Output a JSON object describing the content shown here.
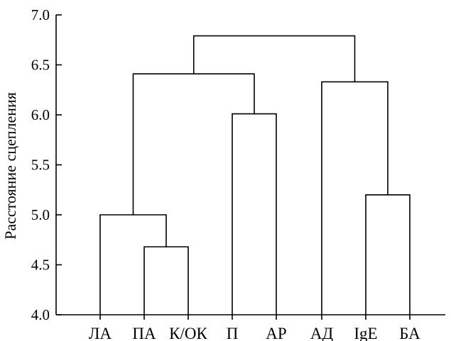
{
  "chart_data": {
    "type": "dendrogram",
    "ylabel": "Расстояние сцепления",
    "ylim": [
      4.0,
      7.0
    ],
    "yticks": [
      "4.0",
      "4.5",
      "5.0",
      "5.5",
      "6.0",
      "6.5",
      "7.0"
    ],
    "leaves": [
      "ЛА",
      "ПА",
      "К/ОК",
      "П",
      "АР",
      "АД",
      "IgE",
      "БА"
    ],
    "merges": [
      {
        "left": "ПА",
        "right": "К/ОК",
        "height": 4.68
      },
      {
        "left": "ЛА",
        "right": [
          "ПА",
          "К/ОК"
        ],
        "height": 5.0
      },
      {
        "left": "П",
        "right": "АР",
        "height": 6.01
      },
      {
        "left": [
          "ЛА",
          "ПА",
          "К/ОК"
        ],
        "right": [
          "П",
          "АР"
        ],
        "height": 6.41
      },
      {
        "left": "IgE",
        "right": "БА",
        "height": 5.2
      },
      {
        "left": "АД",
        "right": [
          "IgE",
          "БА"
        ],
        "height": 6.33
      },
      {
        "left": [
          "ЛА",
          "ПА",
          "К/ОК",
          "П",
          "АР"
        ],
        "right": [
          "АД",
          "IgE",
          "БА"
        ],
        "height": 6.79
      }
    ],
    "grid": false
  }
}
